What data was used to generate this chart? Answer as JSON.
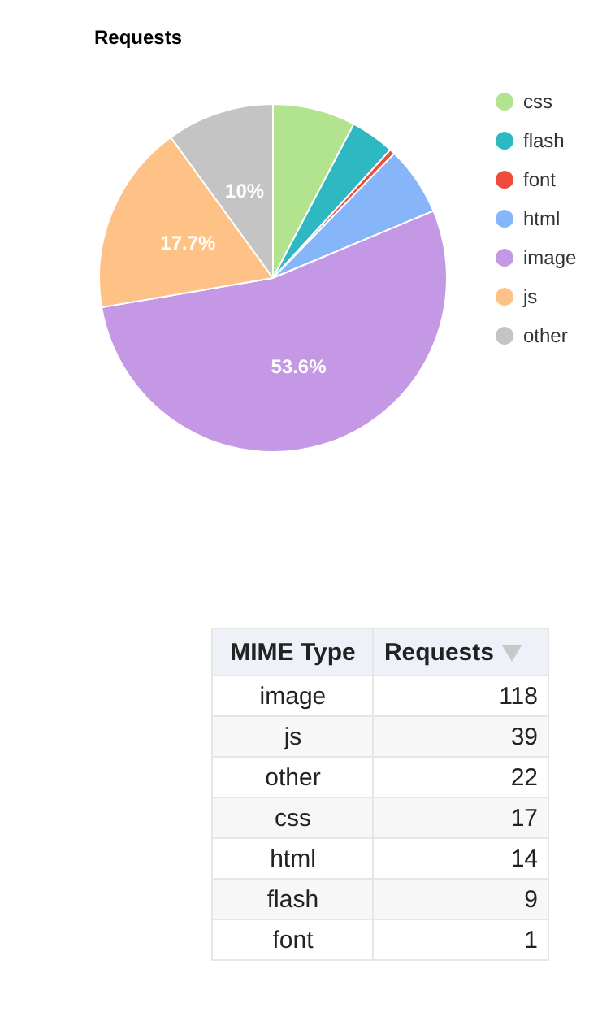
{
  "chart_data": [
    {
      "type": "pie",
      "title": "Requests",
      "categories": [
        "css",
        "flash",
        "font",
        "html",
        "image",
        "js",
        "other"
      ],
      "values": [
        7.7,
        4.1,
        0.5,
        6.4,
        53.6,
        17.7,
        10
      ],
      "colors": [
        "#b2e38e",
        "#2eb8c1",
        "#ef4c3c",
        "#86b5fa",
        "#c598e6",
        "#fec286",
        "#c4c4c4"
      ],
      "value_labels": [
        null,
        null,
        null,
        null,
        "53.6%",
        "17.7%",
        "10%"
      ],
      "legend": "top right"
    },
    {
      "type": "other",
      "xlabel": "MIME Type",
      "ylabel": "Requests",
      "categories": [
        "image",
        "js",
        "other",
        "css",
        "html",
        "flash",
        "font"
      ],
      "values": [
        118,
        39,
        22,
        17,
        14,
        9,
        1
      ],
      "data_labels": true
    }
  ]
}
